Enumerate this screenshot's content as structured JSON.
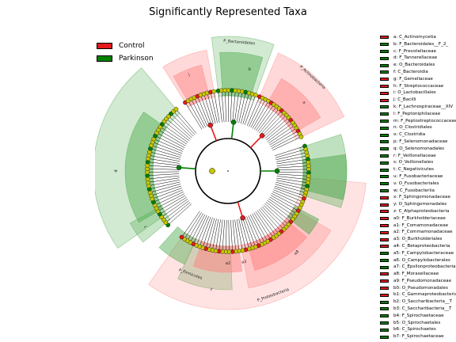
{
  "title": "Significantly Represented Taxa",
  "colors": {
    "control": "#e41a1c",
    "parkinson": "#008000",
    "neutral": "#c8c800",
    "control_fill": "#ff9999",
    "parkinson_fill": "#88c888"
  },
  "legend": [
    {
      "label": "Control",
      "group": "control"
    },
    {
      "label": "Parkinson",
      "group": "parkinson"
    }
  ],
  "sector_labels": [
    {
      "text": "P_Bacteroidetes",
      "group": "parkinson"
    },
    {
      "text": "P_Actinobacteria",
      "group": "control"
    },
    {
      "text": "P_Proteobacteria",
      "group": "control"
    },
    {
      "text": "P_Firmicutes",
      "group": "parkinson"
    },
    {
      "text": "j",
      "group": "control"
    },
    {
      "text": "d",
      "group": "parkinson"
    },
    {
      "text": "t",
      "group": "parkinson"
    },
    {
      "text": "a",
      "group": "control"
    },
    {
      "text": "b",
      "group": "parkinson"
    },
    {
      "text": "a8",
      "group": "control"
    },
    {
      "text": "a3",
      "group": "control"
    },
    {
      "text": "a2",
      "group": "control"
    },
    {
      "text": "z",
      "group": "control"
    }
  ],
  "taxa": [
    {
      "code": "a",
      "label": "a: C_Actinomycetia",
      "group": "control"
    },
    {
      "code": "b",
      "label": "b: F_Bacteroidales__F_2_",
      "group": "parkinson"
    },
    {
      "code": "c",
      "label": "c: F_Prevotellaceae",
      "group": "parkinson"
    },
    {
      "code": "d",
      "label": "d: F_Tannerellaceae",
      "group": "parkinson"
    },
    {
      "code": "e",
      "label": "e: O_Bacteroidales",
      "group": "parkinson"
    },
    {
      "code": "f",
      "label": "f: C_Bacteroidia",
      "group": "parkinson"
    },
    {
      "code": "g",
      "label": "g: F_Gemellaceae",
      "group": "control"
    },
    {
      "code": "h",
      "label": "h: F_Streptococcaceae",
      "group": "control"
    },
    {
      "code": "i",
      "label": "i: O_Lactobacillales",
      "group": "control"
    },
    {
      "code": "j",
      "label": "j: C_Bacilli",
      "group": "control"
    },
    {
      "code": "k",
      "label": "k: F_Lachnospiraceae__XIV",
      "group": "parkinson"
    },
    {
      "code": "l",
      "label": "l: F_Peptoniphilaceae",
      "group": "parkinson"
    },
    {
      "code": "m",
      "label": "m: F_Peptostreptococcaceae",
      "group": "parkinson"
    },
    {
      "code": "n",
      "label": "n: O_Clostridiales",
      "group": "parkinson"
    },
    {
      "code": "o",
      "label": "o: C_Clostridia",
      "group": "parkinson"
    },
    {
      "code": "p",
      "label": "p: F_Selenomonadaceae",
      "group": "parkinson"
    },
    {
      "code": "q",
      "label": "q: O_Selenomonadales",
      "group": "parkinson"
    },
    {
      "code": "r",
      "label": "r: F_Veillonellaceae",
      "group": "parkinson"
    },
    {
      "code": "s",
      "label": "s: O_Veillonellales",
      "group": "parkinson"
    },
    {
      "code": "t",
      "label": "t: C_Negativicutes",
      "group": "parkinson"
    },
    {
      "code": "u",
      "label": "u: F_Fusobacteriaceae",
      "group": "parkinson"
    },
    {
      "code": "v",
      "label": "v: O_Fusobacteriales",
      "group": "parkinson"
    },
    {
      "code": "w",
      "label": "w: C_Fusobacteriia",
      "group": "parkinson"
    },
    {
      "code": "x",
      "label": "x: F_Sphingomonadaceae",
      "group": "control"
    },
    {
      "code": "y",
      "label": "y: O_Sphingomonadales",
      "group": "control"
    },
    {
      "code": "z",
      "label": "z: C_Alphaproteobacteria",
      "group": "control"
    },
    {
      "code": "a0",
      "label": "a0: F_Burkholderiaceae",
      "group": "control"
    },
    {
      "code": "a1",
      "label": "a1: F_Comamonadaceae",
      "group": "control"
    },
    {
      "code": "a2",
      "label": "a2: F_Commamonadaceae",
      "group": "control"
    },
    {
      "code": "a3",
      "label": "a3: O_Burkholderiales",
      "group": "control"
    },
    {
      "code": "a4",
      "label": "a4: C_Betaproteobacteria",
      "group": "control"
    },
    {
      "code": "a5",
      "label": "a5: F_Campylobacteraceae",
      "group": "parkinson"
    },
    {
      "code": "a6",
      "label": "a6: O_Campylobacterales",
      "group": "parkinson"
    },
    {
      "code": "a7",
      "label": "a7: C_Epsilonproteobacteria",
      "group": "parkinson"
    },
    {
      "code": "a8",
      "label": "a8: F_Moraxellaceae",
      "group": "control"
    },
    {
      "code": "a9",
      "label": "a9: F_Pseudomonadaceae",
      "group": "control"
    },
    {
      "code": "b0",
      "label": "b0: O_Pseudomonadales",
      "group": "control"
    },
    {
      "code": "b1",
      "label": "b1: C_Gammaproteobacteria",
      "group": "control"
    },
    {
      "code": "b2",
      "label": "b2: O_Saccharibacteria__T",
      "group": "parkinson"
    },
    {
      "code": "b3",
      "label": "b3: C_Saccharibacteria__T",
      "group": "parkinson"
    },
    {
      "code": "b4",
      "label": "b4: F_Spirochaetaceae",
      "group": "parkinson"
    },
    {
      "code": "b5",
      "label": "b5: O_Spirochaetales",
      "group": "parkinson"
    },
    {
      "code": "b6",
      "label": "b6: C_Spirochaetes",
      "group": "parkinson"
    },
    {
      "code": "b7",
      "label": "b7: F_Spirochaetaceae",
      "group": "parkinson"
    }
  ]
}
